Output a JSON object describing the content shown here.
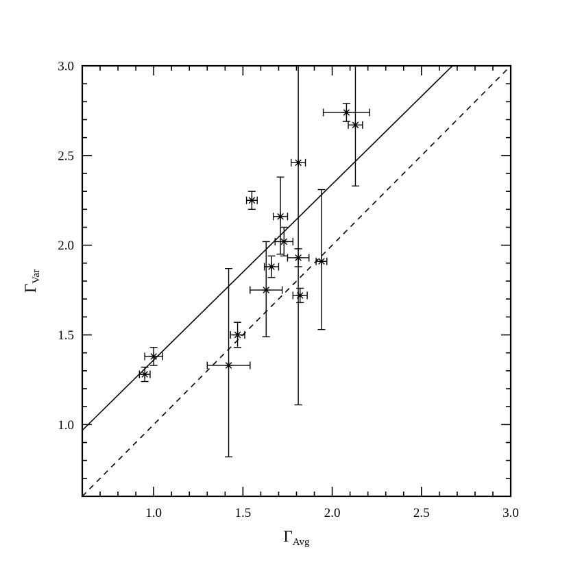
{
  "figure": {
    "background": "#ffffff",
    "ink_color": "#000000"
  },
  "chart_data": {
    "type": "scatter",
    "title": "",
    "xlabel": {
      "base": "Γ",
      "sub": "Avg"
    },
    "ylabel": {
      "base": "Γ",
      "sub": "Var"
    },
    "xlim": [
      0.6,
      3.0
    ],
    "ylim": [
      0.6,
      3.0
    ],
    "xticks": [
      1.0,
      1.5,
      2.0,
      2.5,
      3.0
    ],
    "yticks": [
      1.0,
      1.5,
      2.0,
      2.5,
      3.0
    ],
    "minor_tick_step": 0.1,
    "grid": false,
    "legend": null,
    "lines": [
      {
        "name": "best-fit-line",
        "style": "solid",
        "slope": 0.98,
        "intercept": 0.38
      },
      {
        "name": "one-to-one-line",
        "style": "dashed",
        "slope": 1.0,
        "intercept": 0.0
      }
    ],
    "points": [
      {
        "x": 0.95,
        "y": 1.28,
        "ex": 0.03,
        "eyl": 0.04,
        "eyu": 0.04
      },
      {
        "x": 1.0,
        "y": 1.38,
        "ex": 0.05,
        "eyl": 0.05,
        "eyu": 0.05
      },
      {
        "x": 1.42,
        "y": 1.33,
        "ex": 0.12,
        "eyl": 0.51,
        "eyu": 0.54
      },
      {
        "x": 1.47,
        "y": 1.5,
        "ex": 0.04,
        "eyl": 0.07,
        "eyu": 0.07
      },
      {
        "x": 1.55,
        "y": 2.25,
        "ex": 0.03,
        "eyl": 0.05,
        "eyu": 0.05
      },
      {
        "x": 1.63,
        "y": 1.75,
        "ex": 0.09,
        "eyl": 0.26,
        "eyu": 0.27
      },
      {
        "x": 1.66,
        "y": 1.88,
        "ex": 0.04,
        "eyl": 0.06,
        "eyu": 0.06
      },
      {
        "x": 1.71,
        "y": 2.16,
        "ex": 0.04,
        "eyl": 0.21,
        "eyu": 0.22
      },
      {
        "x": 1.73,
        "y": 2.02,
        "ex": 0.05,
        "eyl": 0.08,
        "eyu": 0.08
      },
      {
        "x": 1.81,
        "y": 2.46,
        "ex": 0.04,
        "eyl": 1.35,
        "eyu": 0.9
      },
      {
        "x": 1.81,
        "y": 1.93,
        "ex": 0.06,
        "eyl": 0.05,
        "eyu": 0.05
      },
      {
        "x": 1.82,
        "y": 1.72,
        "ex": 0.04,
        "eyl": 0.04,
        "eyu": 0.04
      },
      {
        "x": 1.94,
        "y": 1.91,
        "ex": 0.03,
        "eyl": 0.38,
        "eyu": 0.4
      },
      {
        "x": 2.08,
        "y": 2.74,
        "ex": 0.13,
        "eyl": 0.05,
        "eyu": 0.05
      },
      {
        "x": 2.13,
        "y": 2.67,
        "ex": 0.04,
        "eyl": 0.34,
        "eyu": 0.4
      }
    ]
  }
}
